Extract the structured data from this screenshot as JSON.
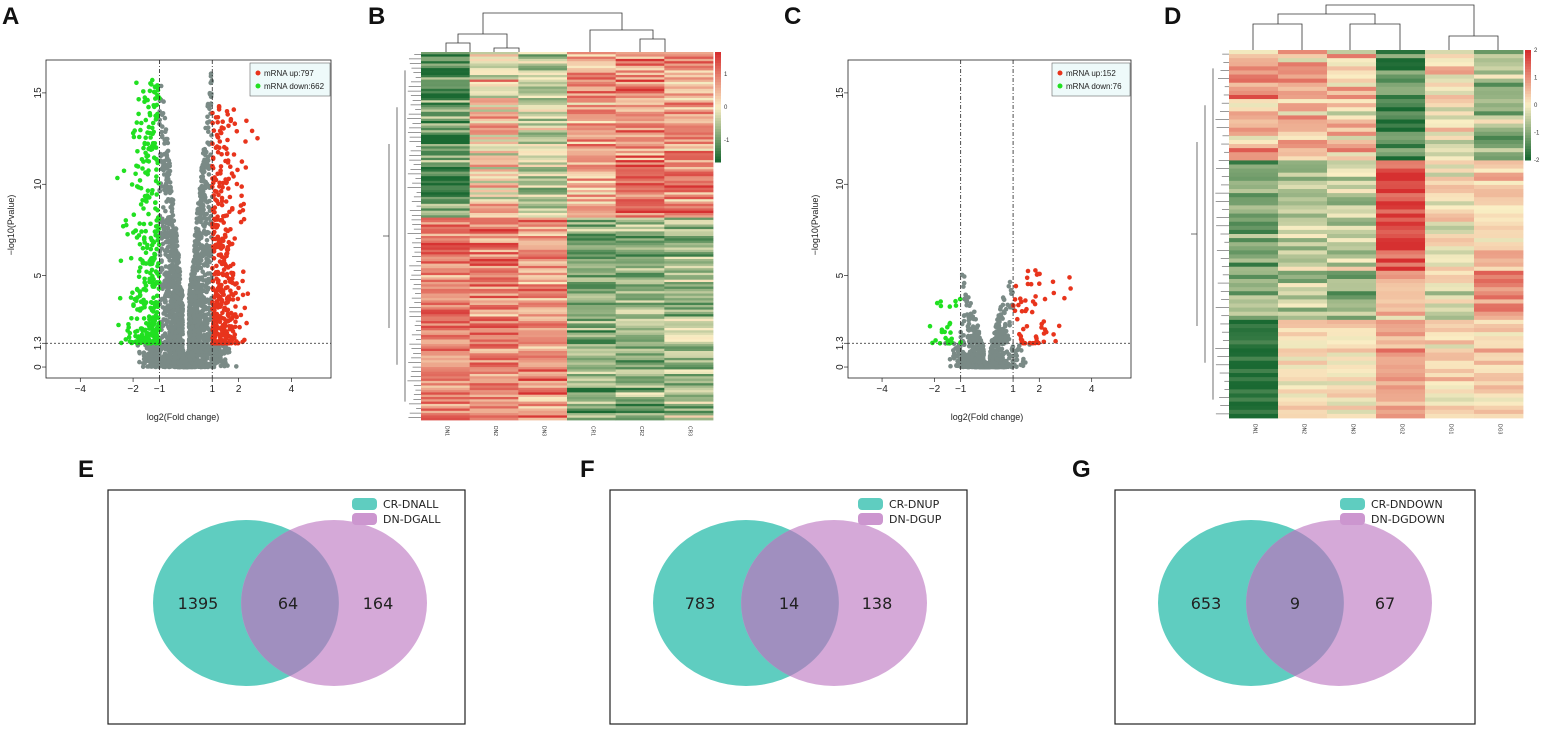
{
  "panels": {
    "A": "A",
    "B": "B",
    "C": "C",
    "D": "D",
    "E": "E",
    "F": "F",
    "G": "G"
  },
  "colors": {
    "up": "#e8341c",
    "down": "#21e021",
    "ns": "#7a8a86",
    "venn_a": "#5fcdc0",
    "venn_b": "#cc96cf"
  },
  "chart_data": [
    {
      "panel": "A",
      "type": "scatter",
      "title": "",
      "xlabel": "log2(Fold change)",
      "ylabel": "−log10(Pvalue)",
      "xlim": [
        -5.3,
        5.5
      ],
      "ylim": [
        -0.6,
        16.8
      ],
      "xticks": [
        -4,
        -2,
        -1,
        1,
        2,
        4
      ],
      "yticks": [
        0,
        1.3,
        5,
        10,
        15
      ],
      "ytick_labels": [
        "0",
        "1.3",
        "5",
        "10",
        "15"
      ],
      "xtick_labels": [
        "−4",
        "−2",
        "−1",
        "1",
        "2",
        "4"
      ],
      "vlines": [
        -1,
        1
      ],
      "hline": 1.3,
      "legend": [
        {
          "label": "mRNA up:797",
          "color": "#e8341c"
        },
        {
          "label": "mRNA down:662",
          "color": "#21e021"
        }
      ],
      "series_counts": {
        "up": 797,
        "down": 662
      },
      "seed": 11
    },
    {
      "panel": "B",
      "type": "heatmap",
      "columns": [
        "DN1",
        "DN2",
        "DN3",
        "CR1",
        "CR2",
        "CR3"
      ],
      "colorbar_ticks": [
        "1",
        "0",
        "-1"
      ],
      "n_rows": 160,
      "seed": 5
    },
    {
      "panel": "C",
      "type": "scatter",
      "title": "",
      "xlabel": "log2(Fold change)",
      "ylabel": "−log10(Pvalue)",
      "xlim": [
        -5.3,
        5.5
      ],
      "ylim": [
        -0.6,
        16.8
      ],
      "xticks": [
        -4,
        -2,
        -1,
        1,
        2,
        4
      ],
      "yticks": [
        0,
        1.3,
        5,
        10,
        15
      ],
      "ytick_labels": [
        "0",
        "1.3",
        "5",
        "10",
        "15"
      ],
      "xtick_labels": [
        "−4",
        "−2",
        "−1",
        "1",
        "2",
        "4"
      ],
      "vlines": [
        -1,
        1
      ],
      "hline": 1.3,
      "legend": [
        {
          "label": "mRNA up:152",
          "color": "#e8341c"
        },
        {
          "label": "mRNA down:76",
          "color": "#21e021"
        }
      ],
      "series_counts": {
        "up": 152,
        "down": 76
      },
      "seed": 23
    },
    {
      "panel": "D",
      "type": "heatmap",
      "columns": [
        "DN1",
        "DN2",
        "DN3",
        "DG2",
        "DG1",
        "DG3"
      ],
      "colorbar_ticks": [
        "2",
        "1",
        "0",
        "-1",
        "-2"
      ],
      "n_rows": 90,
      "seed": 9
    },
    {
      "panel": "E",
      "type": "venn",
      "sets": [
        "CR-DNALL",
        "DN-DGALL"
      ],
      "only_a": "1395",
      "both": "64",
      "only_b": "164"
    },
    {
      "panel": "F",
      "type": "venn",
      "sets": [
        "CR-DNUP",
        "DN-DGUP"
      ],
      "only_a": "783",
      "both": "14",
      "only_b": "138"
    },
    {
      "panel": "G",
      "type": "venn",
      "sets": [
        "CR-DNDOWN",
        "DN-DGDOWN"
      ],
      "only_a": "653",
      "both": "9",
      "only_b": "67"
    }
  ]
}
